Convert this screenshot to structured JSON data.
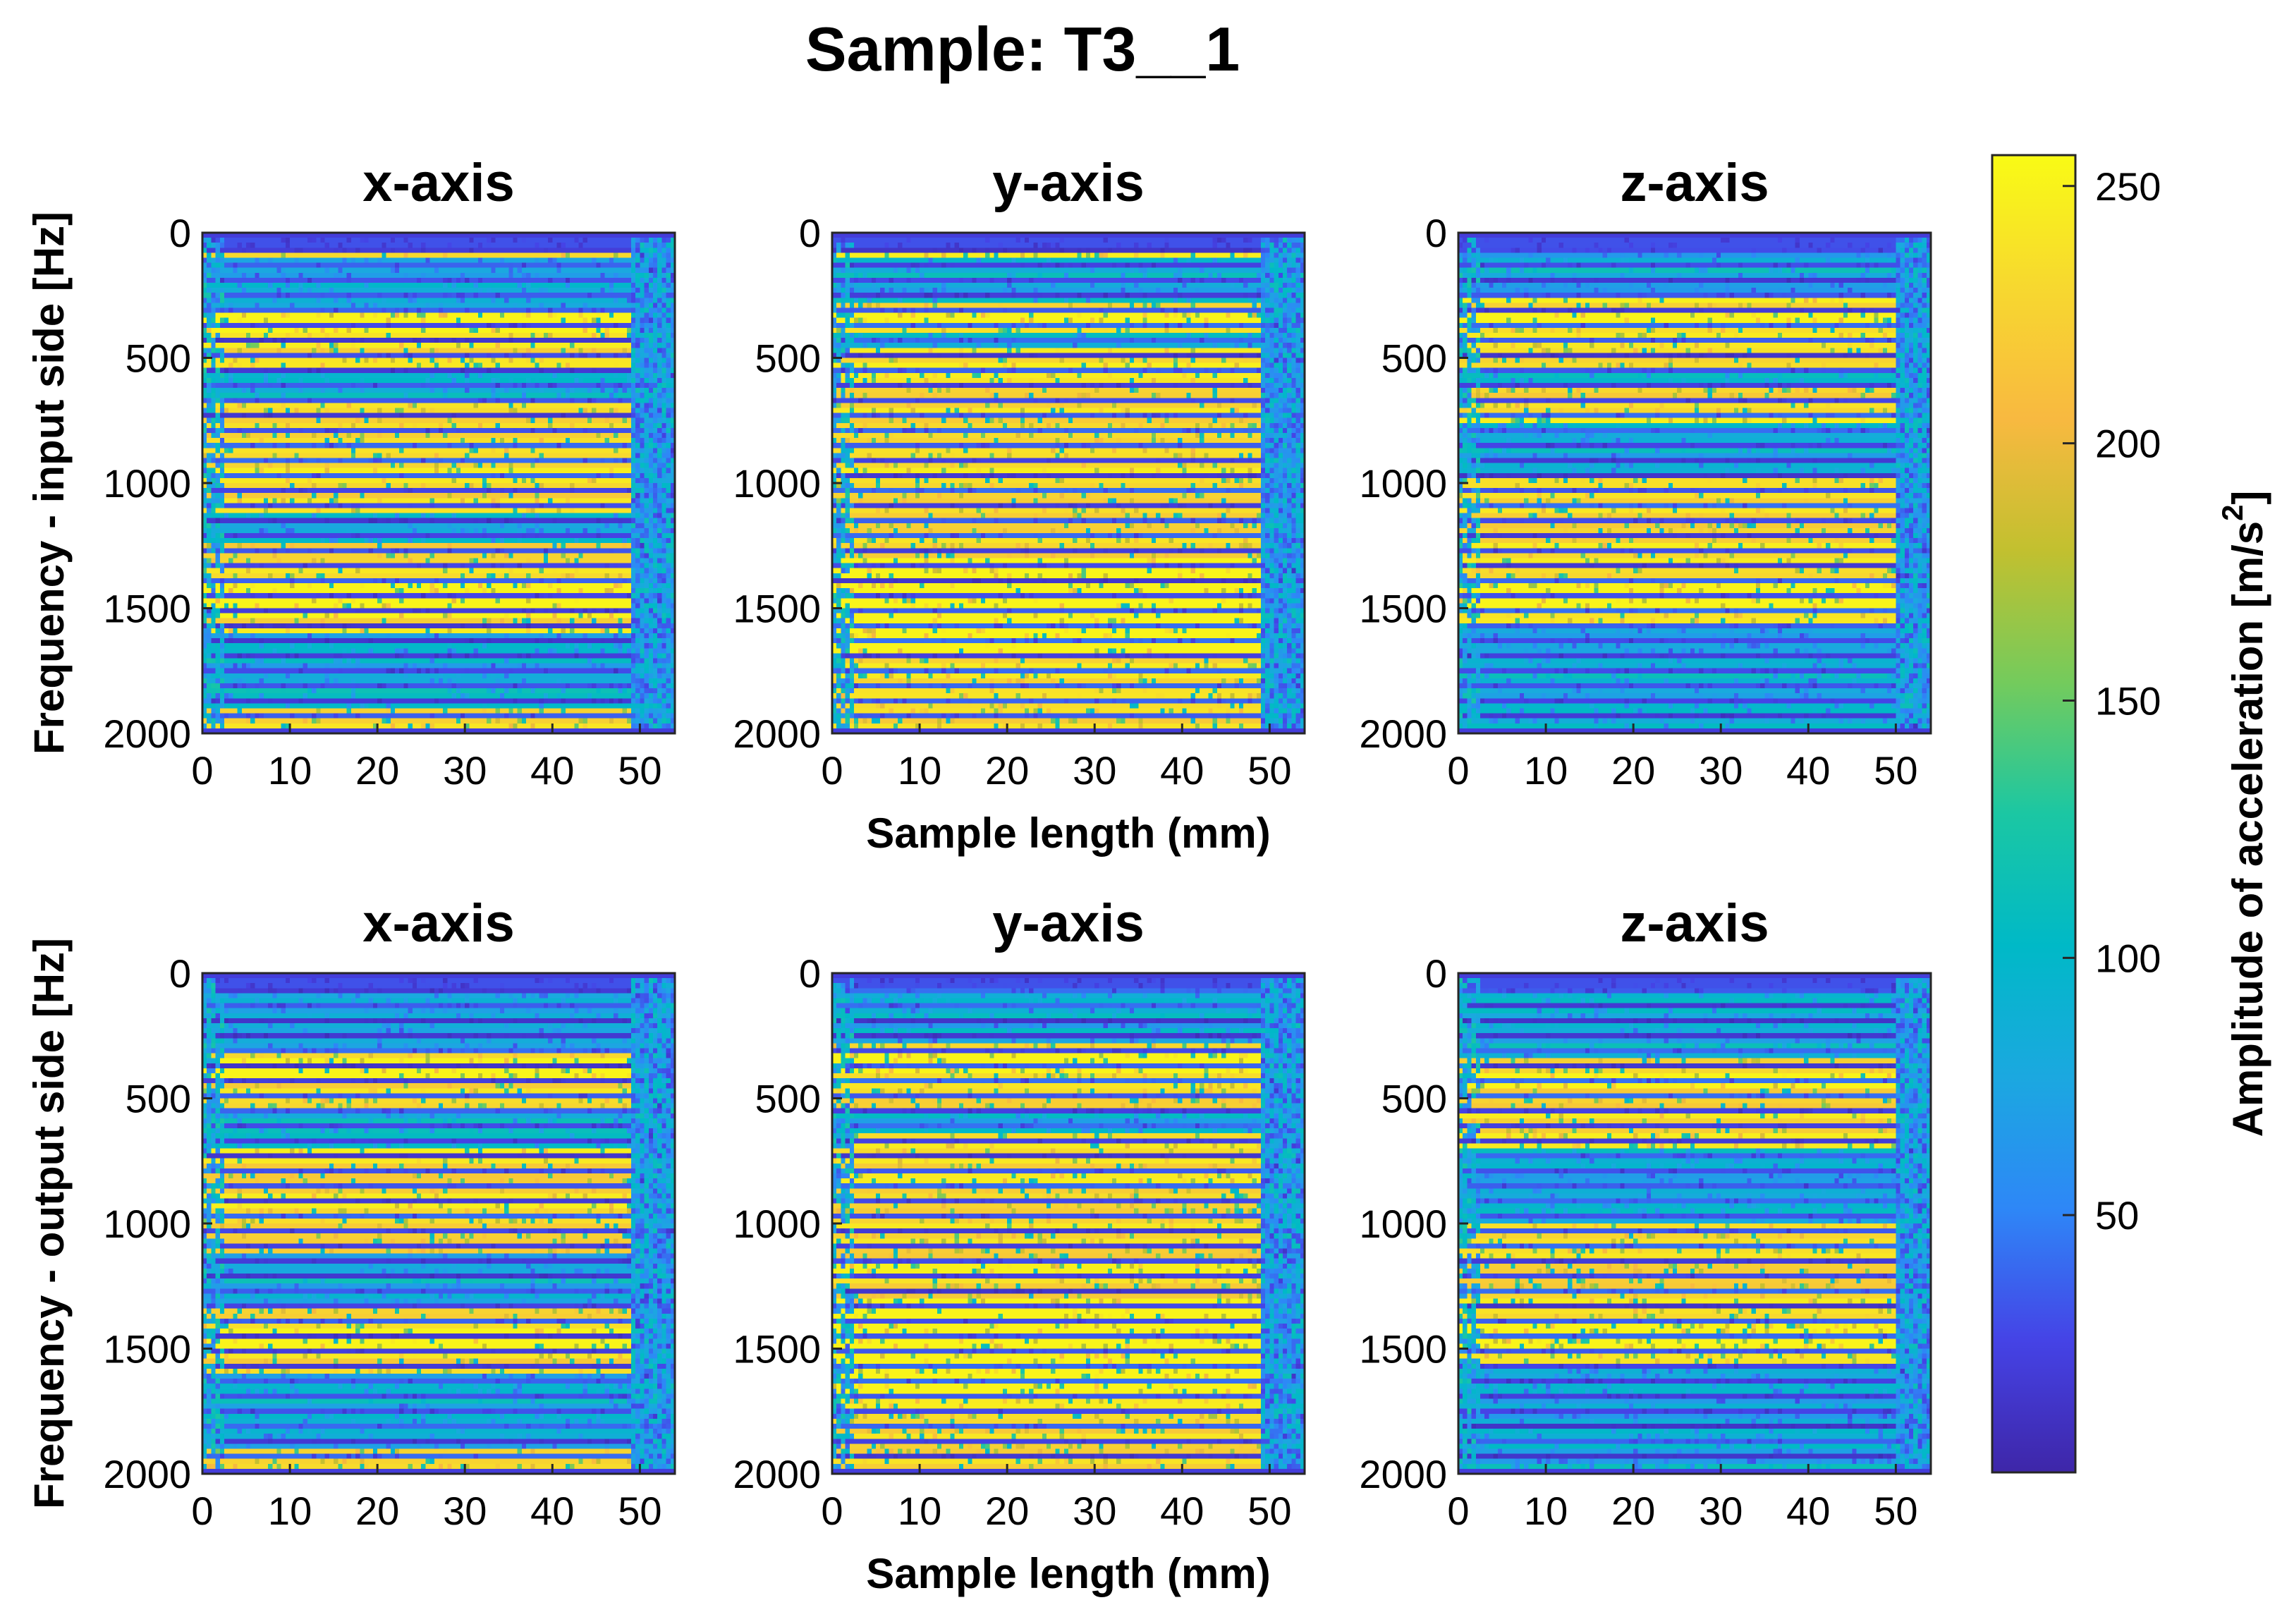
{
  "figure": {
    "title": "Sample: T3__1"
  },
  "chart_data": {
    "type": "heatmap",
    "title": "Sample: T3__1",
    "x_unit_label": "Sample length (mm)",
    "x_range": [
      0,
      54
    ],
    "x_ticks": [
      0,
      10,
      20,
      30,
      40,
      50
    ],
    "y_range": [
      0,
      2000
    ],
    "y_ticks": [
      0,
      500,
      1000,
      1500,
      2000
    ],
    "y_reversed": true,
    "colormap": "parula",
    "colorbar": {
      "label": "Amplitude of acceleration [m/s",
      "label_superscript": "2",
      "label_close": "]",
      "range": [
        0,
        256
      ],
      "ticks": [
        50,
        100,
        150,
        200,
        250
      ],
      "placement": "right"
    },
    "rows": [
      {
        "ylabel": "Frequency - input side [Hz]",
        "show_xlabel": true,
        "panels": [
          {
            "title": "x-axis",
            "seed": 11,
            "low_bands_y": [
              [
                100,
                300
              ],
              [
                560,
                660
              ],
              [
                1120,
                1240
              ],
              [
                1600,
                1900
              ]
            ],
            "high_bands_y": [
              [
                300,
                400
              ],
              [
                1400,
                1530
              ]
            ],
            "edge_mm": 49
          },
          {
            "title": "y-axis",
            "seed": 23,
            "low_bands_y": [
              [
                100,
                280
              ],
              [
                400,
                460
              ]
            ],
            "high_bands_y": [
              [
                300,
                380
              ],
              [
                1300,
                1700
              ]
            ],
            "edge_mm": 49
          },
          {
            "title": "z-axis",
            "seed": 37,
            "low_bands_y": [
              [
                60,
                260
              ],
              [
                540,
                600
              ],
              [
                760,
                980
              ],
              [
                1560,
                1980
              ]
            ],
            "high_bands_y": [
              [
                300,
                360
              ],
              [
                1380,
                1500
              ]
            ],
            "edge_mm": 50
          }
        ]
      },
      {
        "ylabel": "Frequency - output side [Hz]",
        "show_xlabel": true,
        "panels": [
          {
            "title": "x-axis",
            "seed": 53,
            "low_bands_y": [
              [
                60,
                320
              ],
              [
                560,
                700
              ],
              [
                1120,
                1330
              ],
              [
                1600,
                1900
              ]
            ],
            "high_bands_y": [
              [
                340,
                420
              ],
              [
                1420,
                1520
              ]
            ],
            "edge_mm": 49
          },
          {
            "title": "y-axis",
            "seed": 71,
            "low_bands_y": [
              [
                60,
                280
              ],
              [
                560,
                640
              ]
            ],
            "high_bands_y": [
              [
                300,
                400
              ],
              [
                1300,
                1700
              ]
            ],
            "edge_mm": 49
          },
          {
            "title": "z-axis",
            "seed": 89,
            "low_bands_y": [
              [
                40,
                340
              ],
              [
                700,
                1000
              ],
              [
                1560,
                1980
              ]
            ],
            "high_bands_y": [
              [
                400,
                450
              ],
              [
                1400,
                1520
              ]
            ],
            "edge_mm": 50
          }
        ]
      }
    ]
  }
}
